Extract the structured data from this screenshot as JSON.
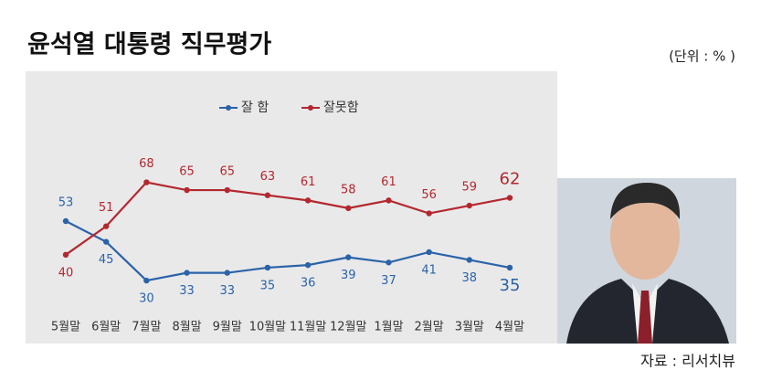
{
  "chart_data": {
    "type": "line",
    "title": "윤석열 대통령 직무평가",
    "unit": "(단위 : % )",
    "source": "자료 : 리서치뷰",
    "categories": [
      "5월말",
      "6월말",
      "7월말",
      "8월말",
      "9월말",
      "10월말",
      "11월말",
      "12월말",
      "1월말",
      "2월말",
      "3월말",
      "4월말"
    ],
    "series": [
      {
        "name": "잘 함",
        "color": "#2b63a8",
        "values": [
          53,
          45,
          30,
          33,
          33,
          35,
          36,
          39,
          37,
          41,
          38,
          35
        ]
      },
      {
        "name": "잘못함",
        "color": "#b3282e",
        "values": [
          40,
          51,
          68,
          65,
          65,
          63,
          61,
          58,
          61,
          56,
          59,
          62
        ]
      }
    ]
  }
}
